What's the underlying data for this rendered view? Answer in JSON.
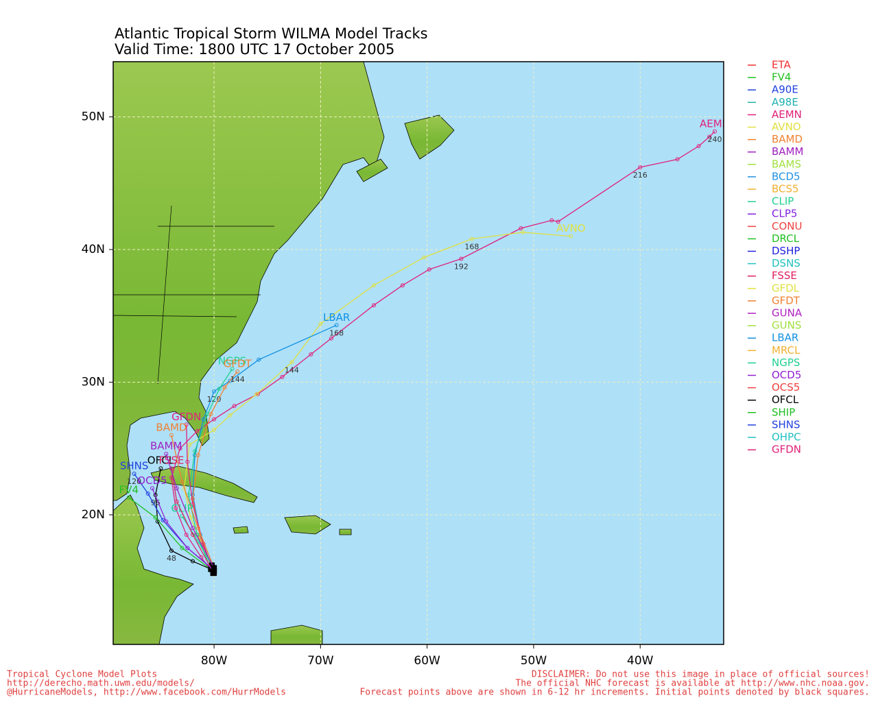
{
  "map": {
    "title": "Atlantic Tropical Storm WILMA Model Tracks",
    "subtitle": "Valid Time: 1800 UTC 17 October 2005",
    "xlim": [
      -89.47,
      -32.16
    ],
    "ylim": [
      10.23,
      54.16
    ],
    "xticks": [
      {
        "value": -80,
        "label": "80W"
      },
      {
        "value": -70,
        "label": "70W"
      },
      {
        "value": -60,
        "label": "60W"
      },
      {
        "value": -50,
        "label": "50W"
      },
      {
        "value": -40,
        "label": "40W"
      }
    ],
    "yticks": [
      {
        "value": 20,
        "label": "20N"
      },
      {
        "value": 30,
        "label": "30N"
      },
      {
        "value": 40,
        "label": "40N"
      },
      {
        "value": 50,
        "label": "50N"
      }
    ],
    "grid": true,
    "legend": [
      {
        "name": "ETA",
        "color": "#f03030"
      },
      {
        "name": "FV4",
        "color": "#20c020"
      },
      {
        "name": "A90E",
        "color": "#2040e0"
      },
      {
        "name": "A98E",
        "color": "#20b0b0"
      },
      {
        "name": "AEMN",
        "color": "#e0207a"
      },
      {
        "name": "AVNO",
        "color": "#e0e040"
      },
      {
        "name": "BAMD",
        "color": "#f08030"
      },
      {
        "name": "BAMM",
        "color": "#a020c0"
      },
      {
        "name": "BAMS",
        "color": "#a0e040"
      },
      {
        "name": "BCD5",
        "color": "#2090e0"
      },
      {
        "name": "BCS5",
        "color": "#f0b030"
      },
      {
        "name": "CLIP",
        "color": "#20d090"
      },
      {
        "name": "CLP5",
        "color": "#8020e0"
      },
      {
        "name": "CONU",
        "color": "#f04040"
      },
      {
        "name": "DRCL",
        "color": "#20c020"
      },
      {
        "name": "DSHP",
        "color": "#2020e0"
      },
      {
        "name": "DSNS",
        "color": "#20c0c0"
      },
      {
        "name": "FSSE",
        "color": "#e02060"
      },
      {
        "name": "GFDL",
        "color": "#e0e040"
      },
      {
        "name": "GFDT",
        "color": "#f08030"
      },
      {
        "name": "GUNA",
        "color": "#b020c0"
      },
      {
        "name": "GUNS",
        "color": "#a0e040"
      },
      {
        "name": "LBAR",
        "color": "#1090e0"
      },
      {
        "name": "MRCL",
        "color": "#f0b030"
      },
      {
        "name": "NGPS",
        "color": "#20d090"
      },
      {
        "name": "OCD5",
        "color": "#9020d0"
      },
      {
        "name": "OCS5",
        "color": "#f04040"
      },
      {
        "name": "OFCL",
        "color": "#000000"
      },
      {
        "name": "SHIP",
        "color": "#20c020"
      },
      {
        "name": "SHNS",
        "color": "#2040e0"
      },
      {
        "name": "OHPC",
        "color": "#20c0c0"
      },
      {
        "name": "GFDN",
        "color": "#e0207a"
      }
    ],
    "tracks": [
      {
        "name": "AEMN",
        "color": "#e0207a",
        "lon": [
          -80.1,
          -81.2,
          -82.6,
          -83.6,
          -84.0,
          -83.2,
          -81.6,
          -80.0,
          -78.1,
          -75.9,
          -73.6,
          -70.9,
          -69.0,
          -65.0,
          -62.3,
          -59.8,
          -56.8,
          -51.2,
          -48.3,
          -47.7,
          -40.0,
          -36.5,
          -34.5,
          -33.5,
          -33.0
        ],
        "lat": [
          15.6,
          16.8,
          18.5,
          20.5,
          22.8,
          25.0,
          26.3,
          27.2,
          28.2,
          29.1,
          30.4,
          32.1,
          33.3,
          35.8,
          37.3,
          38.5,
          39.3,
          41.6,
          42.2,
          42.1,
          46.2,
          46.8,
          47.8,
          48.5,
          48.9
        ],
        "hours": [
          null,
          null,
          null,
          null,
          null,
          null,
          null,
          null,
          null,
          null,
          null,
          null,
          null,
          null,
          null,
          null,
          192,
          null,
          null,
          null,
          216,
          null,
          null,
          null,
          240
        ]
      },
      {
        "name": "AVNO",
        "color": "#e0e040",
        "lon": [
          -80.0,
          -81.0,
          -82.2,
          -82.8,
          -82.3,
          -80.0,
          -78.5,
          -76.0,
          -72.7,
          -70.0,
          -65.0,
          -60.3,
          -55.8,
          -51.0,
          -46.5
        ],
        "lat": [
          15.8,
          17.5,
          19.8,
          22.0,
          25.3,
          26.4,
          27.5,
          29.1,
          31.5,
          34.4,
          37.3,
          39.4,
          40.8,
          41.3,
          41.0
        ],
        "hours": [
          null,
          null,
          null,
          null,
          null,
          null,
          null,
          null,
          144,
          null,
          null,
          null,
          168,
          null,
          null
        ]
      },
      {
        "name": "LBAR",
        "color": "#1090e0",
        "lon": [
          -80.2,
          -81.3,
          -82.0,
          -81.8,
          -81.0,
          -80.0,
          -78.5,
          -75.8,
          -68.5
        ],
        "lat": [
          16.0,
          18.5,
          21.5,
          24.5,
          27.2,
          29.3,
          30.1,
          31.7,
          34.3
        ],
        "hours": [
          null,
          null,
          null,
          null,
          null,
          120,
          null,
          null,
          168
        ]
      },
      {
        "name": "NGPS",
        "color": "#20d090",
        "lon": [
          -80.3,
          -81.6,
          -82.4,
          -81.8,
          -80.6,
          -79.5,
          -78.3
        ],
        "lat": [
          15.9,
          18.5,
          21.5,
          24.8,
          27.6,
          29.5,
          31.0
        ],
        "hours": [
          null,
          null,
          null,
          null,
          null,
          null,
          null
        ]
      },
      {
        "name": "GFDT",
        "color": "#f08030",
        "lon": [
          -80.1,
          -81.3,
          -82.0,
          -81.5,
          -80.3,
          -79.0,
          -77.8
        ],
        "lat": [
          15.7,
          18.3,
          21.2,
          24.5,
          27.6,
          29.6,
          30.8
        ],
        "hours": [
          null,
          null,
          null,
          null,
          null,
          null,
          144
        ]
      },
      {
        "name": "GFDN",
        "color": "#e0207a",
        "lon": [
          -80.0,
          -81.0,
          -82.0,
          -82.5,
          -82.6
        ],
        "lat": [
          15.6,
          17.8,
          20.8,
          24.0,
          26.8
        ],
        "hours": [
          null,
          null,
          null,
          null,
          null
        ]
      },
      {
        "name": "OFCL",
        "color": "#000000",
        "lon": [
          -80.0,
          -82.0,
          -84.0,
          -85.3,
          -85.5,
          -85.0
        ],
        "lat": [
          15.8,
          16.5,
          17.3,
          19.5,
          21.5,
          23.5
        ],
        "hours": [
          null,
          null,
          48,
          null,
          96,
          null
        ]
      },
      {
        "name": "SHNS",
        "color": "#2040e0",
        "lon": [
          -80.1,
          -82.5,
          -84.8,
          -86.2,
          -87.5
        ],
        "lat": [
          15.9,
          17.5,
          19.6,
          21.6,
          23.1
        ],
        "hours": [
          null,
          null,
          null,
          null,
          120
        ]
      },
      {
        "name": "FV4",
        "color": "#20c020",
        "lon": [
          -80.3,
          -83.0,
          -85.5,
          -88.0
        ],
        "lat": [
          15.9,
          17.5,
          19.8,
          21.3
        ],
        "hours": [
          null,
          null,
          null,
          null
        ]
      },
      {
        "name": "BAMD",
        "color": "#f08030",
        "lon": [
          -80.0,
          -81.5,
          -83.0,
          -84.0
        ],
        "lat": [
          16.0,
          19.0,
          22.5,
          26.0
        ],
        "hours": [
          null,
          null,
          null,
          null
        ]
      },
      {
        "name": "CLIP",
        "color": "#20d090",
        "lon": [
          -80.2,
          -81.5,
          -83.0
        ],
        "lat": [
          16.2,
          18.0,
          19.9
        ],
        "hours": [
          null,
          null,
          null
        ]
      },
      {
        "name": "FSSE",
        "color": "#e02060",
        "lon": [
          -80.1,
          -82.0,
          -83.5,
          -84.0
        ],
        "lat": [
          15.7,
          18.5,
          21.0,
          23.5
        ],
        "hours": [
          null,
          null,
          null,
          null
        ]
      },
      {
        "name": "OCD5",
        "color": "#9020d0",
        "lon": [
          -80.0,
          -82.5,
          -84.5,
          -85.8
        ],
        "lat": [
          15.8,
          17.5,
          19.5,
          22.0
        ],
        "hours": [
          null,
          null,
          null,
          null
        ]
      },
      {
        "name": "BAMM",
        "color": "#a020c0",
        "lon": [
          -80.0,
          -82.0,
          -83.5,
          -84.5
        ],
        "lat": [
          16.0,
          19.0,
          22.0,
          24.6
        ],
        "hours": [
          null,
          null,
          null,
          null
        ]
      }
    ]
  },
  "footer": {
    "left": [
      "Tropical Cyclone Model Plots",
      "http://derecho.math.uwm.edu/models/",
      "@HurricaneModels, http://www.facebook.com/HurrModels"
    ],
    "right": [
      "DISCLAIMER: Do not use this image in place of official sources!",
      "The official NHC forecast is available at http://www.nhc.noaa.gov.",
      "Forecast points above are shown in 6-12 hr increments. Initial points denoted by black squares."
    ]
  }
}
